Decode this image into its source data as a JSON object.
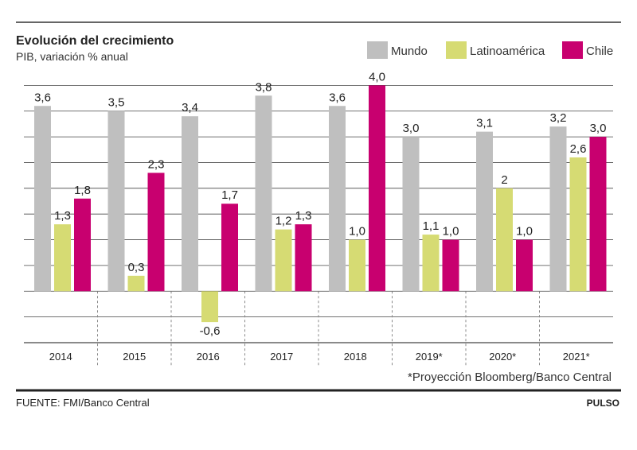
{
  "chart_data": {
    "type": "bar",
    "title": "Evolución del crecimiento",
    "subtitle": "PIB, variación % anual",
    "categories": [
      "2014",
      "2015",
      "2016",
      "2017",
      "2018",
      "2019*",
      "2020*",
      "2021*"
    ],
    "series": [
      {
        "name": "Mundo",
        "color": "#bfbfbf",
        "values": [
          3.6,
          3.5,
          3.4,
          3.8,
          3.6,
          3.0,
          3.1,
          3.2
        ],
        "labels": [
          "3,6",
          "3,5",
          "3,4",
          "3,8",
          "3,6",
          "3,0",
          "3,1",
          "3,2"
        ]
      },
      {
        "name": "Latinoamérica",
        "color": "#d6db73",
        "values": [
          1.3,
          0.3,
          -0.6,
          1.2,
          1.0,
          1.1,
          2.0,
          2.6
        ],
        "labels": [
          "1,3",
          "0,3",
          "-0,6",
          "1,2",
          "1,0",
          "1,1",
          "2",
          "2,6"
        ]
      },
      {
        "name": "Chile",
        "color": "#c8006f",
        "values": [
          1.8,
          2.3,
          1.7,
          1.3,
          4.0,
          1.0,
          1.0,
          3.0
        ],
        "labels": [
          "1,8",
          "2,3",
          "1,7",
          "1,3",
          "4,0",
          "1,0",
          "1,0",
          "3,0"
        ]
      }
    ],
    "ylim": [
      -1.0,
      4.5
    ],
    "grid": true,
    "legend": "top-right",
    "footnote": "*Proyección Bloomberg/Banco Central"
  },
  "footer": {
    "source": "FUENTE: FMI/Banco Central",
    "brand": "PULSO"
  }
}
